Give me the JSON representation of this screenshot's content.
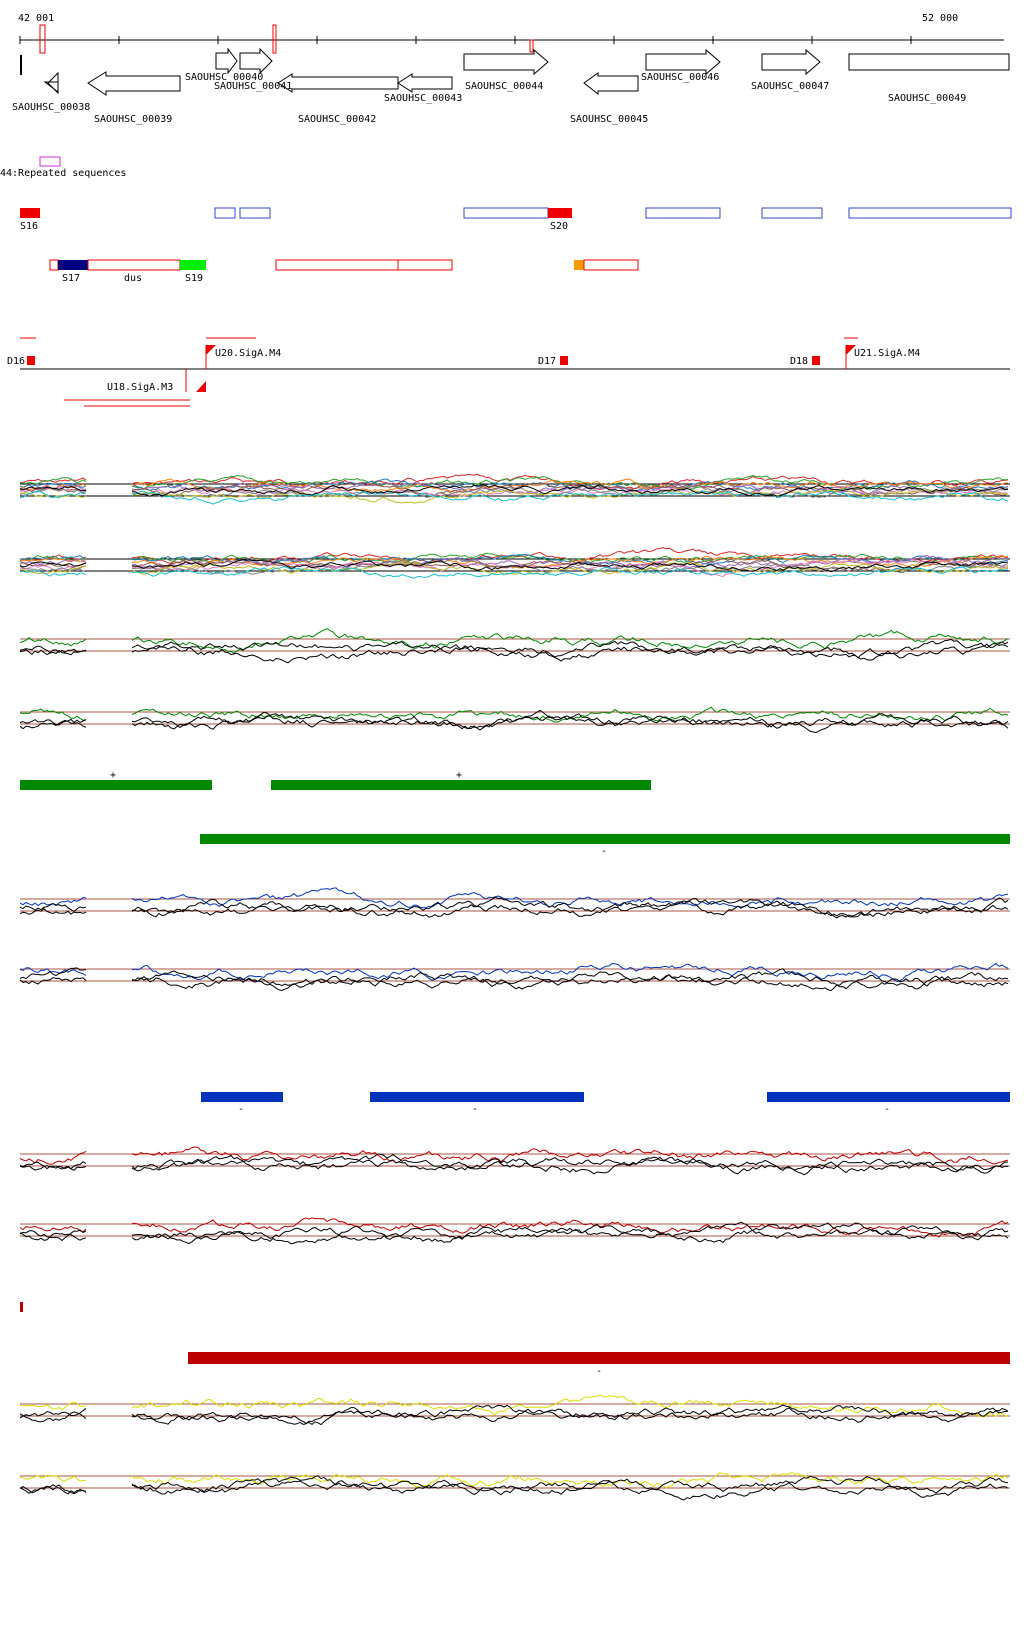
{
  "coords": {
    "start": "42 001",
    "end": "52 000"
  },
  "genes": [
    {
      "id": "SAOUHSC_00038",
      "dir": "-"
    },
    {
      "id": "SAOUHSC_00039",
      "dir": "-"
    },
    {
      "id": "SAOUHSC_00040",
      "dir": "+"
    },
    {
      "id": "SAOUHSC_00041",
      "dir": "+"
    },
    {
      "id": "SAOUHSC_00042",
      "dir": "-"
    },
    {
      "id": "SAOUHSC_00043",
      "dir": "-"
    },
    {
      "id": "SAOUHSC_00044",
      "dir": "+"
    },
    {
      "id": "SAOUHSC_00045",
      "dir": "-"
    },
    {
      "id": "SAOUHSC_00046",
      "dir": "+"
    },
    {
      "id": "SAOUHSC_00047",
      "dir": "+"
    },
    {
      "id": "SAOUHSC_00049",
      "dir": "none"
    }
  ],
  "repeat_label": "44:Repeated sequences",
  "segments": {
    "s16": "S16",
    "s20": "S20",
    "s17": "S17",
    "dus": "dus",
    "s19": "S19"
  },
  "tss": {
    "d16": "D16",
    "d17": "D17",
    "d18": "D18",
    "u20": "U20.SigA.M4",
    "u21": "U21.SigA.M4",
    "u18": "U18.SigA.M3"
  },
  "strand_marks": {
    "plus1": "+",
    "plus2": "+",
    "minus_green": "-",
    "minus_blue1": "-",
    "minus_blue2": "-",
    "minus_blue3": "-",
    "minus_red": "-"
  },
  "colors": {
    "gene_outline": "#000000",
    "repeat": "#cc33cc",
    "red_segment": "#ee0000",
    "blue_outline": "#3344cc",
    "navy": "#000080",
    "green_segment": "#00ee00",
    "orange": "#ff9900",
    "track_green": "#008800",
    "track_blue": "#0033bb",
    "track_red": "#bb0000",
    "track_yellow": "#dddd00",
    "ref_line": "#aa5544"
  }
}
